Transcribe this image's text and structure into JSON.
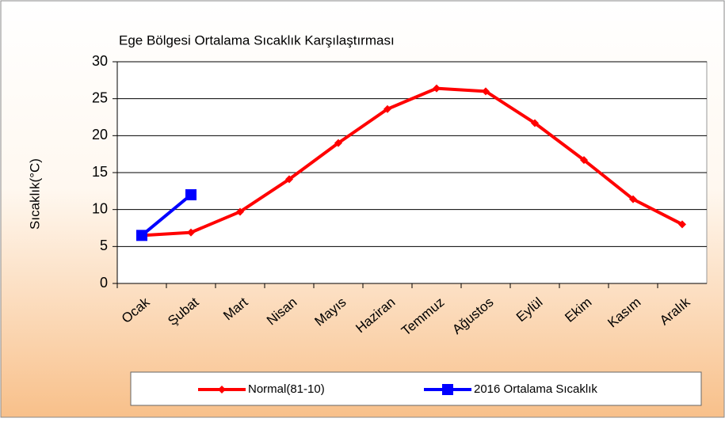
{
  "chart_data": {
    "type": "line",
    "title": "Ege  Bölgesi  Ortalama Sıcaklık Karşılaştırması",
    "y_label": "Sıcaklık(°C)",
    "categories": [
      "Ocak",
      "Şubat",
      "Mart",
      "Nisan",
      "Mayıs",
      "Haziran",
      "Temmuz",
      "Ağustos",
      "Eylül",
      "Ekim",
      "Kasım",
      "Aralık"
    ],
    "series": [
      {
        "name": "Normal(81-10)",
        "color": "#ff0000",
        "marker": "diamond",
        "values": [
          6.5,
          6.9,
          9.7,
          14.1,
          19.0,
          23.6,
          26.4,
          26.0,
          21.7,
          16.7,
          11.4,
          8.0
        ]
      },
      {
        "name": "2016 Ortalama Sıcaklık",
        "color": "#0000ff",
        "marker": "square",
        "values": [
          6.5,
          12.0,
          null,
          null,
          null,
          null,
          null,
          null,
          null,
          null,
          null,
          null
        ]
      }
    ],
    "ylim": [
      0,
      30
    ],
    "yticks": [
      0,
      5,
      10,
      15,
      20,
      25,
      30
    ],
    "grid": true,
    "legend": "bottom"
  }
}
